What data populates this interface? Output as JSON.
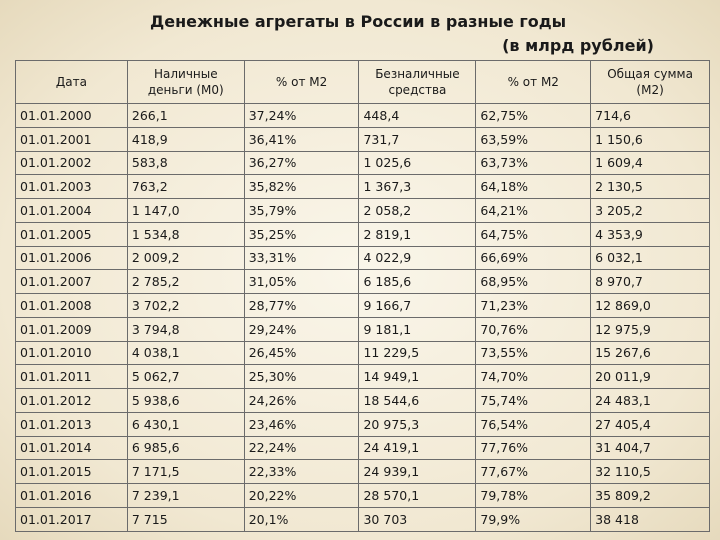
{
  "title": {
    "line1": "Денежные агрегаты в России  в разные годы",
    "line2": "(в млрд рублей)"
  },
  "table": {
    "headers": [
      "Дата",
      "Наличные деньги (М0)",
      "% от М2",
      "Безналичные средства",
      "% от М2",
      "Общая сумма (М2)"
    ],
    "rows": [
      [
        "01.01.2000",
        "266,1",
        "37,24%",
        "448,4",
        "62,75%",
        "714,6"
      ],
      [
        "01.01.2001",
        "418,9",
        "36,41%",
        "731,7",
        "63,59%",
        "1 150,6"
      ],
      [
        "01.01.2002",
        "583,8",
        "36,27%",
        "1 025,6",
        "63,73%",
        "1 609,4"
      ],
      [
        "01.01.2003",
        "763,2",
        "35,82%",
        "1 367,3",
        "64,18%",
        "2 130,5"
      ],
      [
        "01.01.2004",
        "1 147,0",
        "35,79%",
        "2 058,2",
        "64,21%",
        "3 205,2"
      ],
      [
        "01.01.2005",
        "1 534,8",
        "35,25%",
        "2 819,1",
        "64,75%",
        "4 353,9"
      ],
      [
        "01.01.2006",
        "2 009,2",
        "33,31%",
        "4 022,9",
        "66,69%",
        "6 032,1"
      ],
      [
        "01.01.2007",
        "2 785,2",
        "31,05%",
        "6 185,6",
        "68,95%",
        "8 970,7"
      ],
      [
        "01.01.2008",
        "3 702,2",
        "28,77%",
        "9 166,7",
        "71,23%",
        "12 869,0"
      ],
      [
        "01.01.2009",
        "3 794,8",
        "29,24%",
        "9 181,1",
        "70,76%",
        "12 975,9"
      ],
      [
        "01.01.2010",
        "4 038,1",
        "26,45%",
        "11 229,5",
        "73,55%",
        "15 267,6"
      ],
      [
        "01.01.2011",
        "5 062,7",
        "25,30%",
        "14 949,1",
        "74,70%",
        "20 011,9"
      ],
      [
        "01.01.2012",
        "5 938,6",
        "24,26%",
        "18 544,6",
        "75,74%",
        "24 483,1"
      ],
      [
        "01.01.2013",
        "6 430,1",
        "23,46%",
        "20 975,3",
        "76,54%",
        "27 405,4"
      ],
      [
        "01.01.2014",
        "6 985,6",
        "22,24%",
        "24 419,1",
        "77,76%",
        "31 404,7"
      ],
      [
        "01.01.2015",
        "7 171,5",
        "22,33%",
        "24 939,1",
        "77,67%",
        "32 110,5"
      ],
      [
        "01.01.2016",
        "7 239,1",
        "20,22%",
        "28 570,1",
        "79,78%",
        "35 809,2"
      ],
      [
        "01.01.2017",
        "7 715",
        "20,1%",
        "30 703",
        "79,9%",
        "38 418"
      ]
    ]
  }
}
